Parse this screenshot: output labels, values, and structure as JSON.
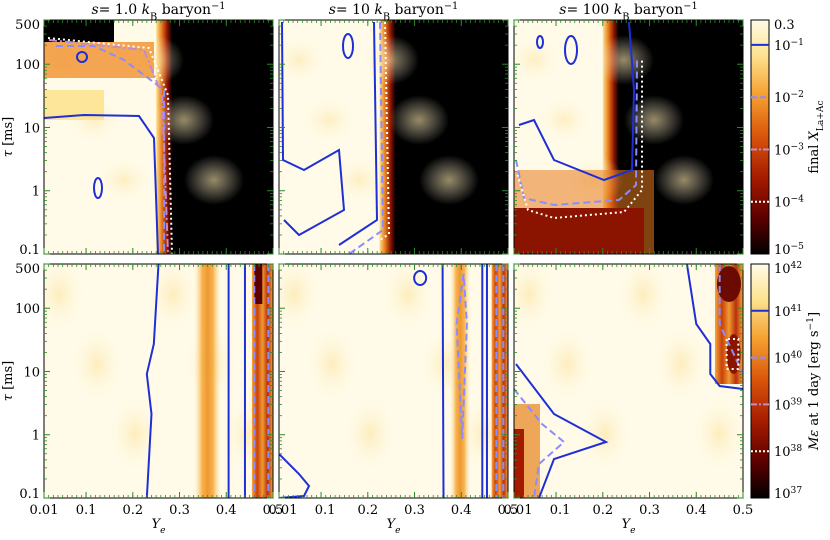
{
  "chart_data": {
    "type": "heatmap",
    "layout": "2x3 grid of panels sharing axes",
    "columns": [
      {
        "title": "s = 1.0 k_B baryon^-1",
        "title_parts": {
          "pre": "s = 1.0 ",
          "italic": "k",
          "sub": "B",
          "post": " baryon",
          "sup": "−1"
        }
      },
      {
        "title": "s = 10 k_B baryon^-1",
        "title_parts": {
          "pre": "s = 10 ",
          "italic": "k",
          "sub": "B",
          "post": " baryon",
          "sup": "−1"
        }
      },
      {
        "title": "s = 100 k_B baryon^-1",
        "title_parts": {
          "pre": "s = 100 ",
          "italic": "k",
          "sub": "B",
          "post": " baryon",
          "sup": "−1"
        }
      }
    ],
    "x_axis": {
      "label": "Y_e",
      "label_main": "Y",
      "label_sub": "e",
      "range": [
        0.01,
        0.5
      ],
      "ticks": [
        {
          "value": 0.01,
          "label": "0.01"
        },
        {
          "value": 0.1,
          "label": "0.1"
        },
        {
          "value": 0.2,
          "label": "0.2"
        },
        {
          "value": 0.3,
          "label": "0.3"
        },
        {
          "value": 0.4,
          "label": "0.4"
        },
        {
          "value": 0.5,
          "label": "0.5"
        }
      ]
    },
    "y_axis": {
      "label": "τ [ms]",
      "label_symbol": "τ",
      "label_unit": "[ms]",
      "scale": "log",
      "range": [
        0.1,
        500
      ],
      "ticks": [
        {
          "value": 0.1,
          "label": "0.1"
        },
        {
          "value": 1,
          "label": "1"
        },
        {
          "value": 10,
          "label": "10"
        },
        {
          "value": 100,
          "label": "100"
        },
        {
          "value": 500,
          "label": "500"
        }
      ]
    },
    "rows": [
      {
        "quantity": "final X_La+Ac",
        "colorbar_label": {
          "pre": "final ",
          "italic": "X",
          "sub": "La+Ac"
        },
        "colorbar_scale": "log",
        "colorbar_range": [
          1e-05,
          0.3
        ],
        "colorbar_ticks": [
          {
            "value": 0.3,
            "base": "0.3",
            "exp": ""
          },
          {
            "value": 0.1,
            "base": "10",
            "exp": "−1"
          },
          {
            "value": 0.01,
            "base": "10",
            "exp": "−2"
          },
          {
            "value": 0.001,
            "base": "10",
            "exp": "−3"
          },
          {
            "value": 0.0001,
            "base": "10",
            "exp": "−4"
          },
          {
            "value": 1e-05,
            "base": "10",
            "exp": "−5"
          }
        ],
        "contour_levels": [
          {
            "value": 0.1,
            "style": "solid"
          },
          {
            "value": 0.01,
            "style": "dashed"
          },
          {
            "value": 0.001,
            "style": "dashdot"
          },
          {
            "value": 0.0001,
            "style": "dotted"
          }
        ],
        "panels": [
          {
            "description": "lanthanide-rich for Ye below ~0.27 across all tau; cutoff near Ye 0.28",
            "cutoff_ye": 0.28
          },
          {
            "description": "lanthanide-rich for Ye below ~0.25, upper region also rich",
            "cutoff_ye": 0.255
          },
          {
            "description": "lanthanide-rich above tau ~0.5 ms and Ye below ~0.23",
            "cutoff_ye": 0.23
          }
        ]
      },
      {
        "quantity": "Mε at 1 day [erg s^-1]",
        "colorbar_label": {
          "pre": "",
          "italic": "Mε",
          "post": " at 1 day [erg s",
          "sup": "−1",
          "end": "]"
        },
        "colorbar_scale": "log",
        "colorbar_range": [
          1e+37,
          1e+42
        ],
        "colorbar_ticks": [
          {
            "value": 1e+42,
            "base": "10",
            "exp": "42"
          },
          {
            "value": 1e+41,
            "base": "10",
            "exp": "41"
          },
          {
            "value": 1e+40,
            "base": "10",
            "exp": "40"
          },
          {
            "value": 1e+39,
            "base": "10",
            "exp": "39"
          },
          {
            "value": 1e+38,
            "base": "10",
            "exp": "38"
          },
          {
            "value": 1e+37,
            "base": "10",
            "exp": "37"
          }
        ],
        "contour_levels": [
          {
            "value": 1e+41,
            "style": "solid"
          },
          {
            "value": 1e+40,
            "style": "dashed"
          },
          {
            "value": 1e+39,
            "style": "dashdot"
          },
          {
            "value": 1e+38,
            "style": "dotted"
          }
        ],
        "panels": [
          {
            "description": "low heating bands near Ye 0.35 and Ye 0.47-0.5"
          },
          {
            "description": "low heating band near Ye 0.4 and Ye 0.48-0.5"
          },
          {
            "description": "low heating at Ye 0.45-0.5 high tau and low Ye small tau"
          }
        ]
      }
    ],
    "colors": {
      "colormap": [
        "#000000",
        "#5a0000",
        "#a31a00",
        "#d9530a",
        "#f5a030",
        "#fde390",
        "#fffbe8"
      ],
      "contour": "#1f2fd6",
      "contour_light": "#8a8cff",
      "tick_color": "#2a8a2a"
    }
  }
}
